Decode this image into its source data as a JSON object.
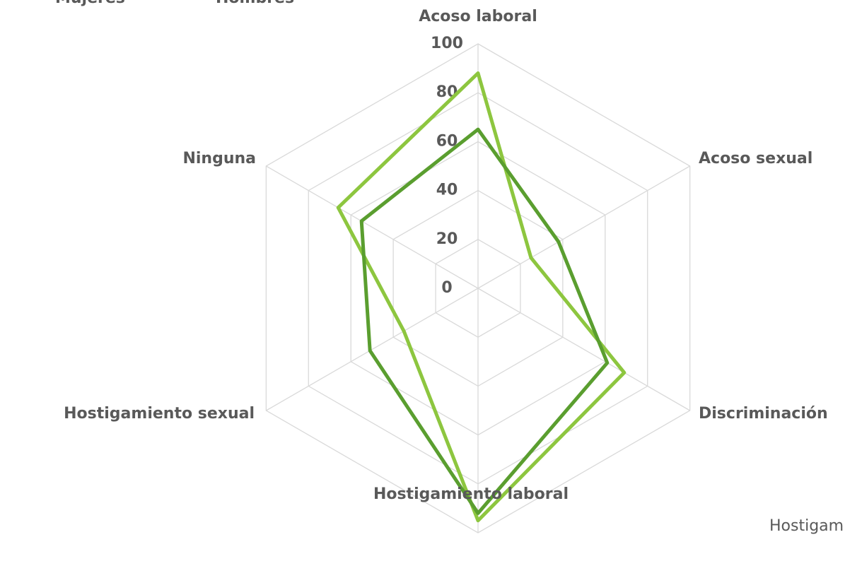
{
  "chart_data": {
    "type": "radar",
    "categories": [
      "Acoso laboral",
      "Acoso sexual",
      "Discriminación",
      "Hostigamiento laboral",
      "Hostigamiento sexual",
      "Ninguna"
    ],
    "series": [
      {
        "name": "Mujeres",
        "color": "#8dc63f",
        "values": [
          88,
          25,
          69,
          95,
          35,
          66
        ]
      },
      {
        "name": "Hombres",
        "color": "#5a9e2f",
        "values": [
          65,
          38,
          61,
          92,
          51,
          55
        ]
      }
    ],
    "ylim": [
      0,
      100
    ],
    "yticks": [
      0,
      20,
      40,
      60,
      80,
      100
    ],
    "grid": true,
    "annotation": "Hostigam"
  }
}
